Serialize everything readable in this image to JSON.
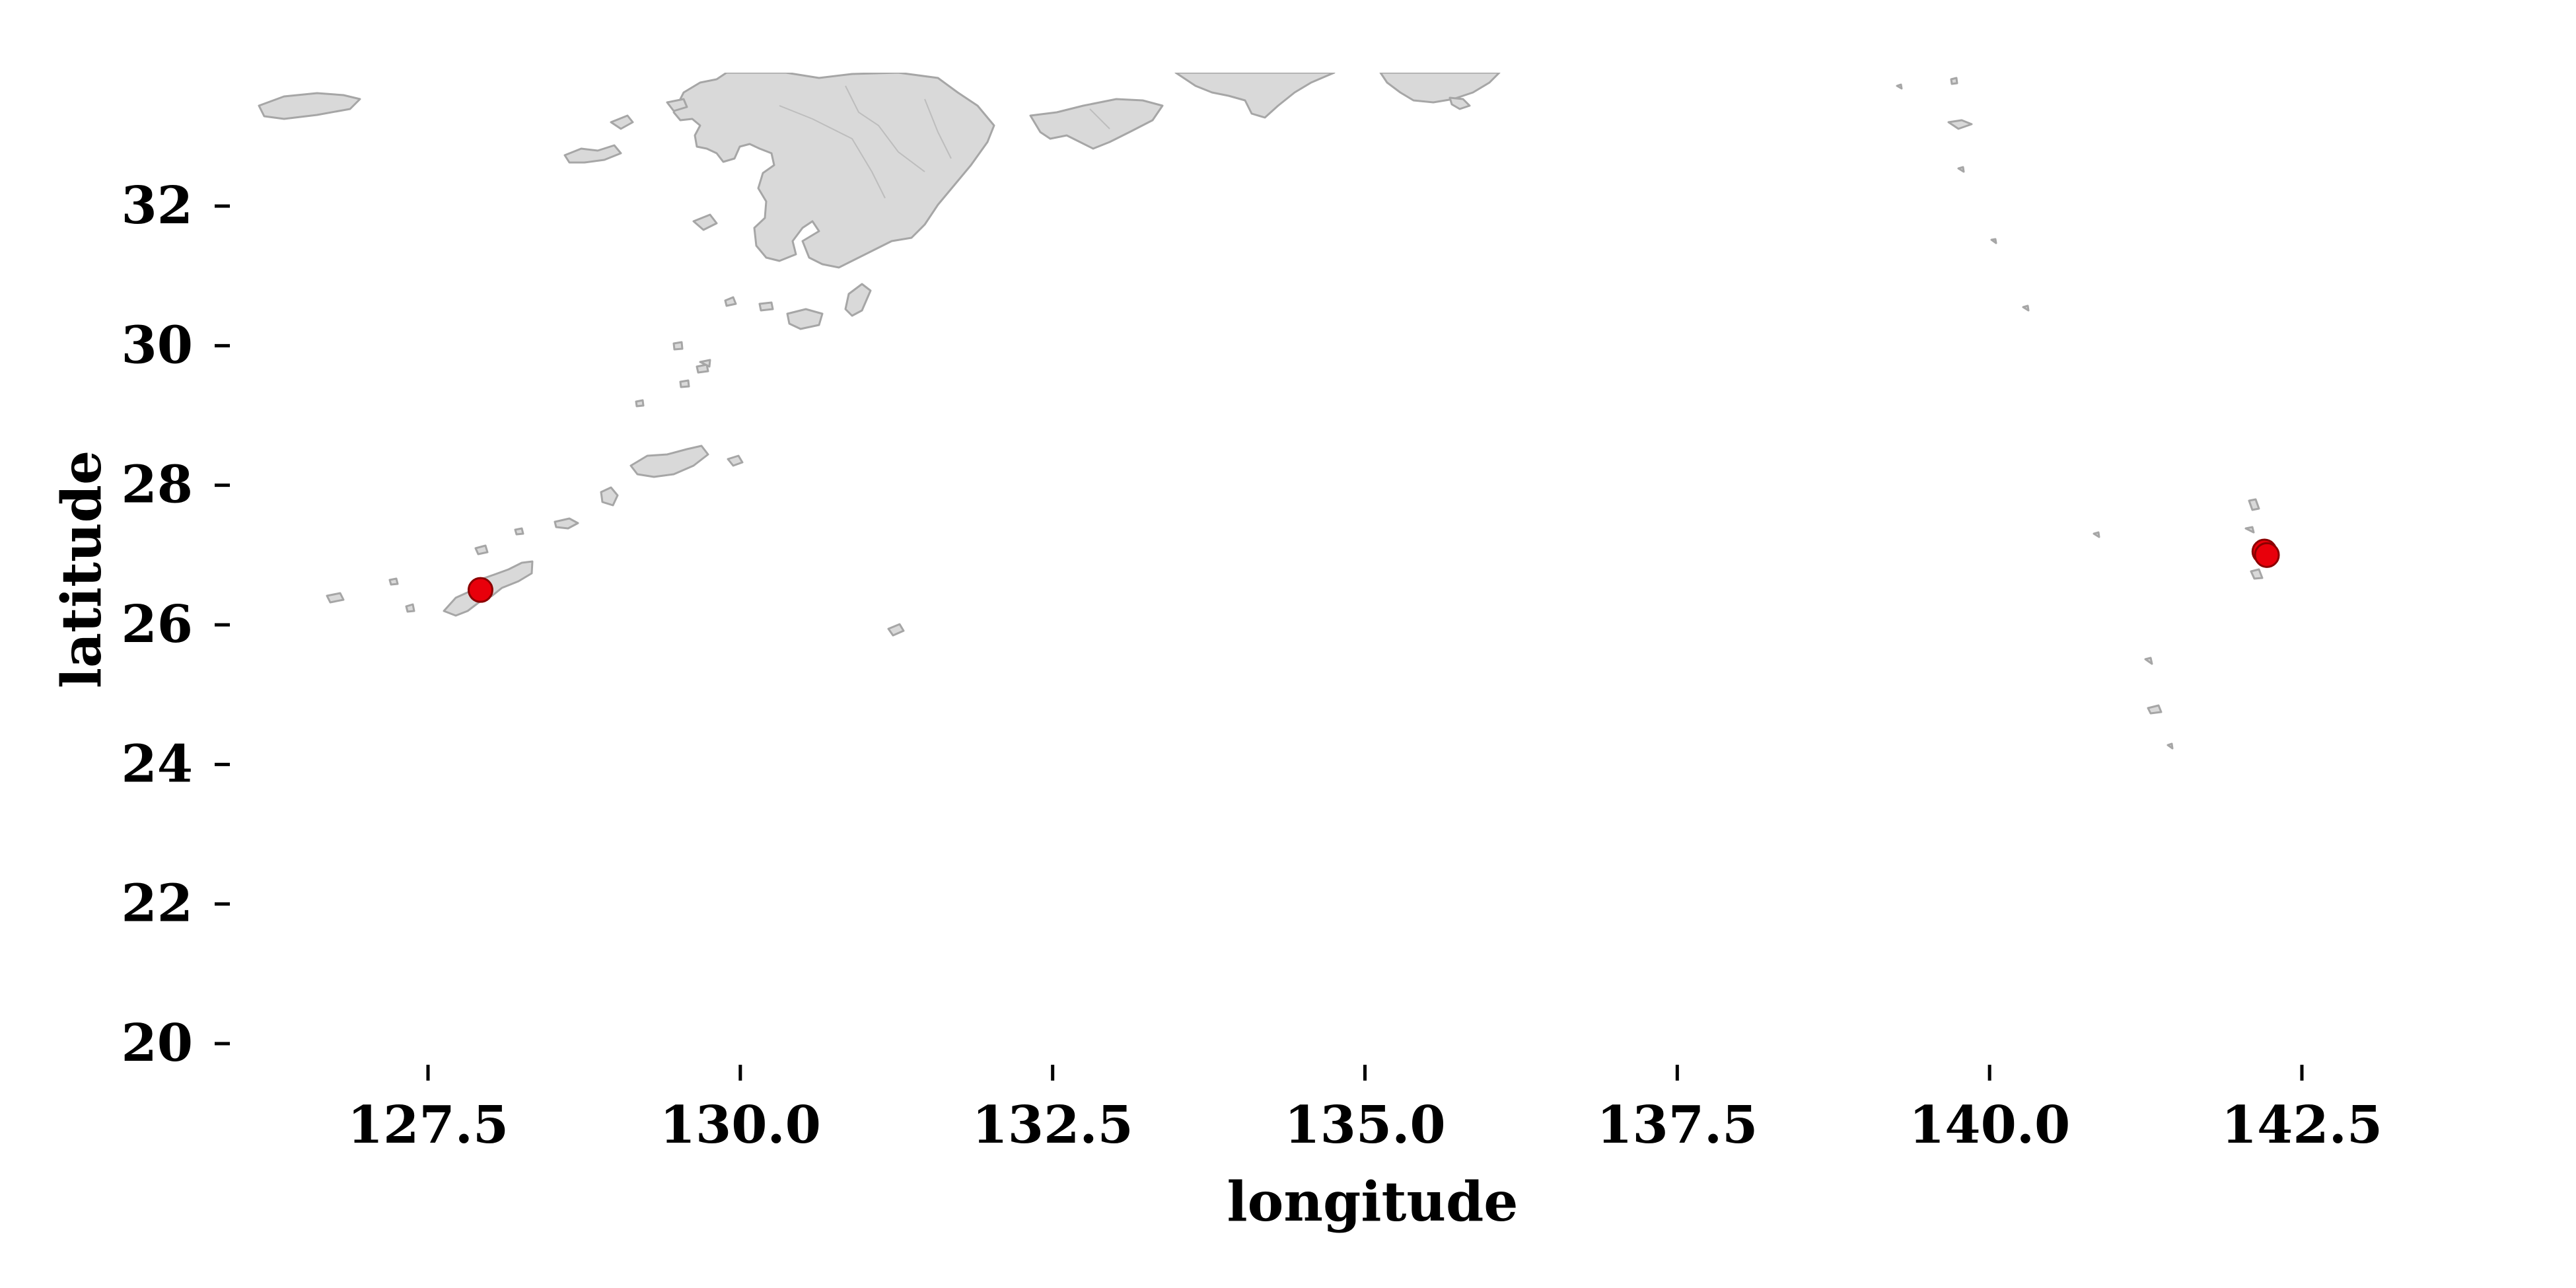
{
  "map": {
    "type": "scatter-map",
    "xlabel": "longitude",
    "ylabel": "latitude",
    "xlim": [
      126.0,
      145.0
    ],
    "ylim": [
      19.6,
      33.9
    ],
    "x_ticks": [
      {
        "value": 127.5,
        "label": "127.5"
      },
      {
        "value": 130.0,
        "label": "130.0"
      },
      {
        "value": 132.5,
        "label": "132.5"
      },
      {
        "value": 135.0,
        "label": "135.0"
      },
      {
        "value": 137.5,
        "label": "137.5"
      },
      {
        "value": 140.0,
        "label": "140.0"
      },
      {
        "value": 142.5,
        "label": "142.5"
      }
    ],
    "y_ticks": [
      {
        "value": 20,
        "label": "20"
      },
      {
        "value": 22,
        "label": "22"
      },
      {
        "value": 24,
        "label": "24"
      },
      {
        "value": 26,
        "label": "26"
      },
      {
        "value": 28,
        "label": "28"
      },
      {
        "value": 30,
        "label": "30"
      },
      {
        "value": 32,
        "label": "32"
      }
    ],
    "points": [
      {
        "lon": 127.92,
        "lat": 26.5
      },
      {
        "lon": 142.2,
        "lat": 27.05
      },
      {
        "lon": 142.22,
        "lat": 27.0
      }
    ],
    "land_color": "#d9d9d9",
    "coast_color": "#a6a6a6",
    "point_color": "#e8000b",
    "grid": false
  }
}
